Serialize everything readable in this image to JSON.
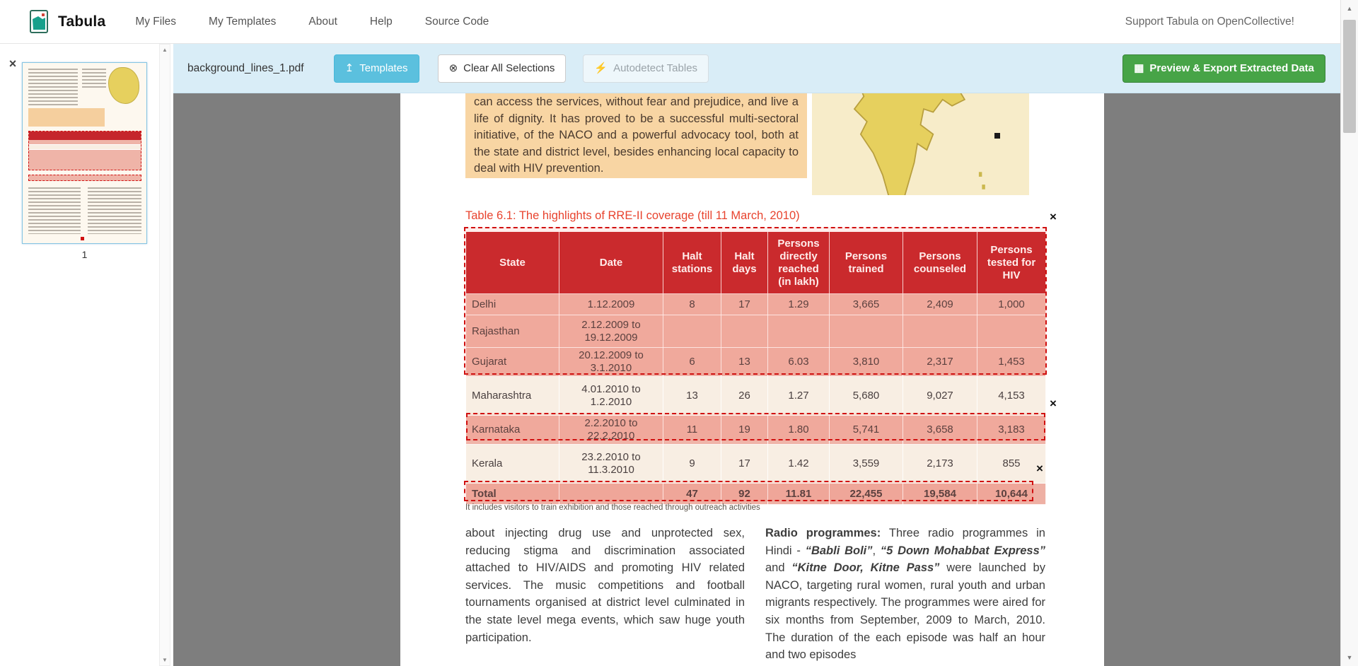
{
  "navbar": {
    "brand": "Tabula",
    "items": [
      {
        "label": "My Files"
      },
      {
        "label": "My Templates"
      },
      {
        "label": "About"
      },
      {
        "label": "Help"
      },
      {
        "label": "Source Code"
      }
    ],
    "right_text": "Support Tabula on OpenCollective!"
  },
  "toolbar": {
    "filename": "background_lines_1.pdf",
    "templates_label": "Templates",
    "clear_selections_label": "Clear All Selections",
    "autodetect_label": "Autodetect Tables",
    "export_label": "Preview & Export Extracted Data"
  },
  "sidebar": {
    "page_number": "1"
  },
  "icons": {
    "templates": "↥",
    "clear": "⊗",
    "autodetect": "⚡",
    "export": "▦",
    "close": "×",
    "remove": "×",
    "arrow_up": "▲",
    "arrow_down": "▼"
  },
  "colors": {
    "toolbar_bg": "#d9edf7",
    "templates_button": "#5bc0de",
    "export_button": "#47a447",
    "selection_red": "#d01010",
    "table_header_red": "#c5262c",
    "selected_row_pink": "#efb4a8",
    "workspace_gray": "#7e7e7e"
  },
  "document": {
    "intro_paragraph": "can access the services, without fear and prejudice, and live a life of dignity. It has proved to be a successful multi-sectoral initiative, of the NACO and a powerful advocacy tool, both at the state and district level, besides enhancing local capacity to deal with HIV prevention.",
    "table_title": "Table 6.1: The highlights of RRE-II coverage (till 11 March, 2010)",
    "table": {
      "headers": [
        "State",
        "Date",
        "Halt stations",
        "Halt days",
        "Persons directly reached (in lakh)",
        "Persons trained",
        "Persons counseled",
        "Persons tested for HIV"
      ],
      "rows": [
        {
          "cells": [
            "Delhi",
            "1.12.2009",
            "8",
            "17",
            "1.29",
            "3,665",
            "2,409",
            "1,000"
          ],
          "selected": true
        },
        {
          "cells": [
            "Rajasthan",
            "2.12.2009 to 19.12.2009",
            "",
            "",
            "",
            "",
            "",
            ""
          ],
          "selected": true
        },
        {
          "cells": [
            "Gujarat",
            "20.12.2009 to 3.1.2010",
            "6",
            "13",
            "6.03",
            "3,810",
            "2,317",
            "1,453"
          ],
          "selected": true
        },
        {
          "cells": [
            "Maharashtra",
            "4.01.2010 to 1.2.2010",
            "13",
            "26",
            "1.27",
            "5,680",
            "9,027",
            "4,153"
          ],
          "selected": false
        },
        {
          "cells": [
            "Karnataka",
            "2.2.2010 to 22.2.2010",
            "11",
            "19",
            "1.80",
            "5,741",
            "3,658",
            "3,183"
          ],
          "selected": true
        },
        {
          "cells": [
            "Kerala",
            "23.2.2010 to 11.3.2010",
            "9",
            "17",
            "1.42",
            "3,559",
            "2,173",
            "855"
          ],
          "selected": false
        },
        {
          "cells": [
            "Total",
            "",
            "47",
            "92",
            "11.81",
            "22,455",
            "19,584",
            "10,644"
          ],
          "selected": true,
          "bold": true
        }
      ],
      "footnote": "It includes visitors to train exhibition and those reached through outreach activities"
    },
    "left_column_text": "about injecting drug use and unprotected sex, reducing stigma and discrimination associated attached to HIV/AIDS and promoting HIV related services. The music competitions and football tournaments organised at district level culminated in the state level mega events, which saw huge youth participation.",
    "right_column_segments": [
      {
        "text": "Radio programmes:",
        "style": "bold"
      },
      {
        "text": " Three radio programmes in Hindi - ",
        "style": "normal"
      },
      {
        "text": "“Babli Boli”",
        "style": "bolditalic"
      },
      {
        "text": ", ",
        "style": "normal"
      },
      {
        "text": "“5 Down Mohabbat Express”",
        "style": "bolditalic"
      },
      {
        "text": " and ",
        "style": "normal"
      },
      {
        "text": "“Kitne Door, Kitne Pass”",
        "style": "bolditalic"
      },
      {
        "text": " were launched by NACO, targeting rural women, rural youth and urban migrants respectively. The programmes were aired for six months from September, 2009 to March, 2010. The duration of the each episode was half an hour and two episodes",
        "style": "normal"
      }
    ]
  }
}
